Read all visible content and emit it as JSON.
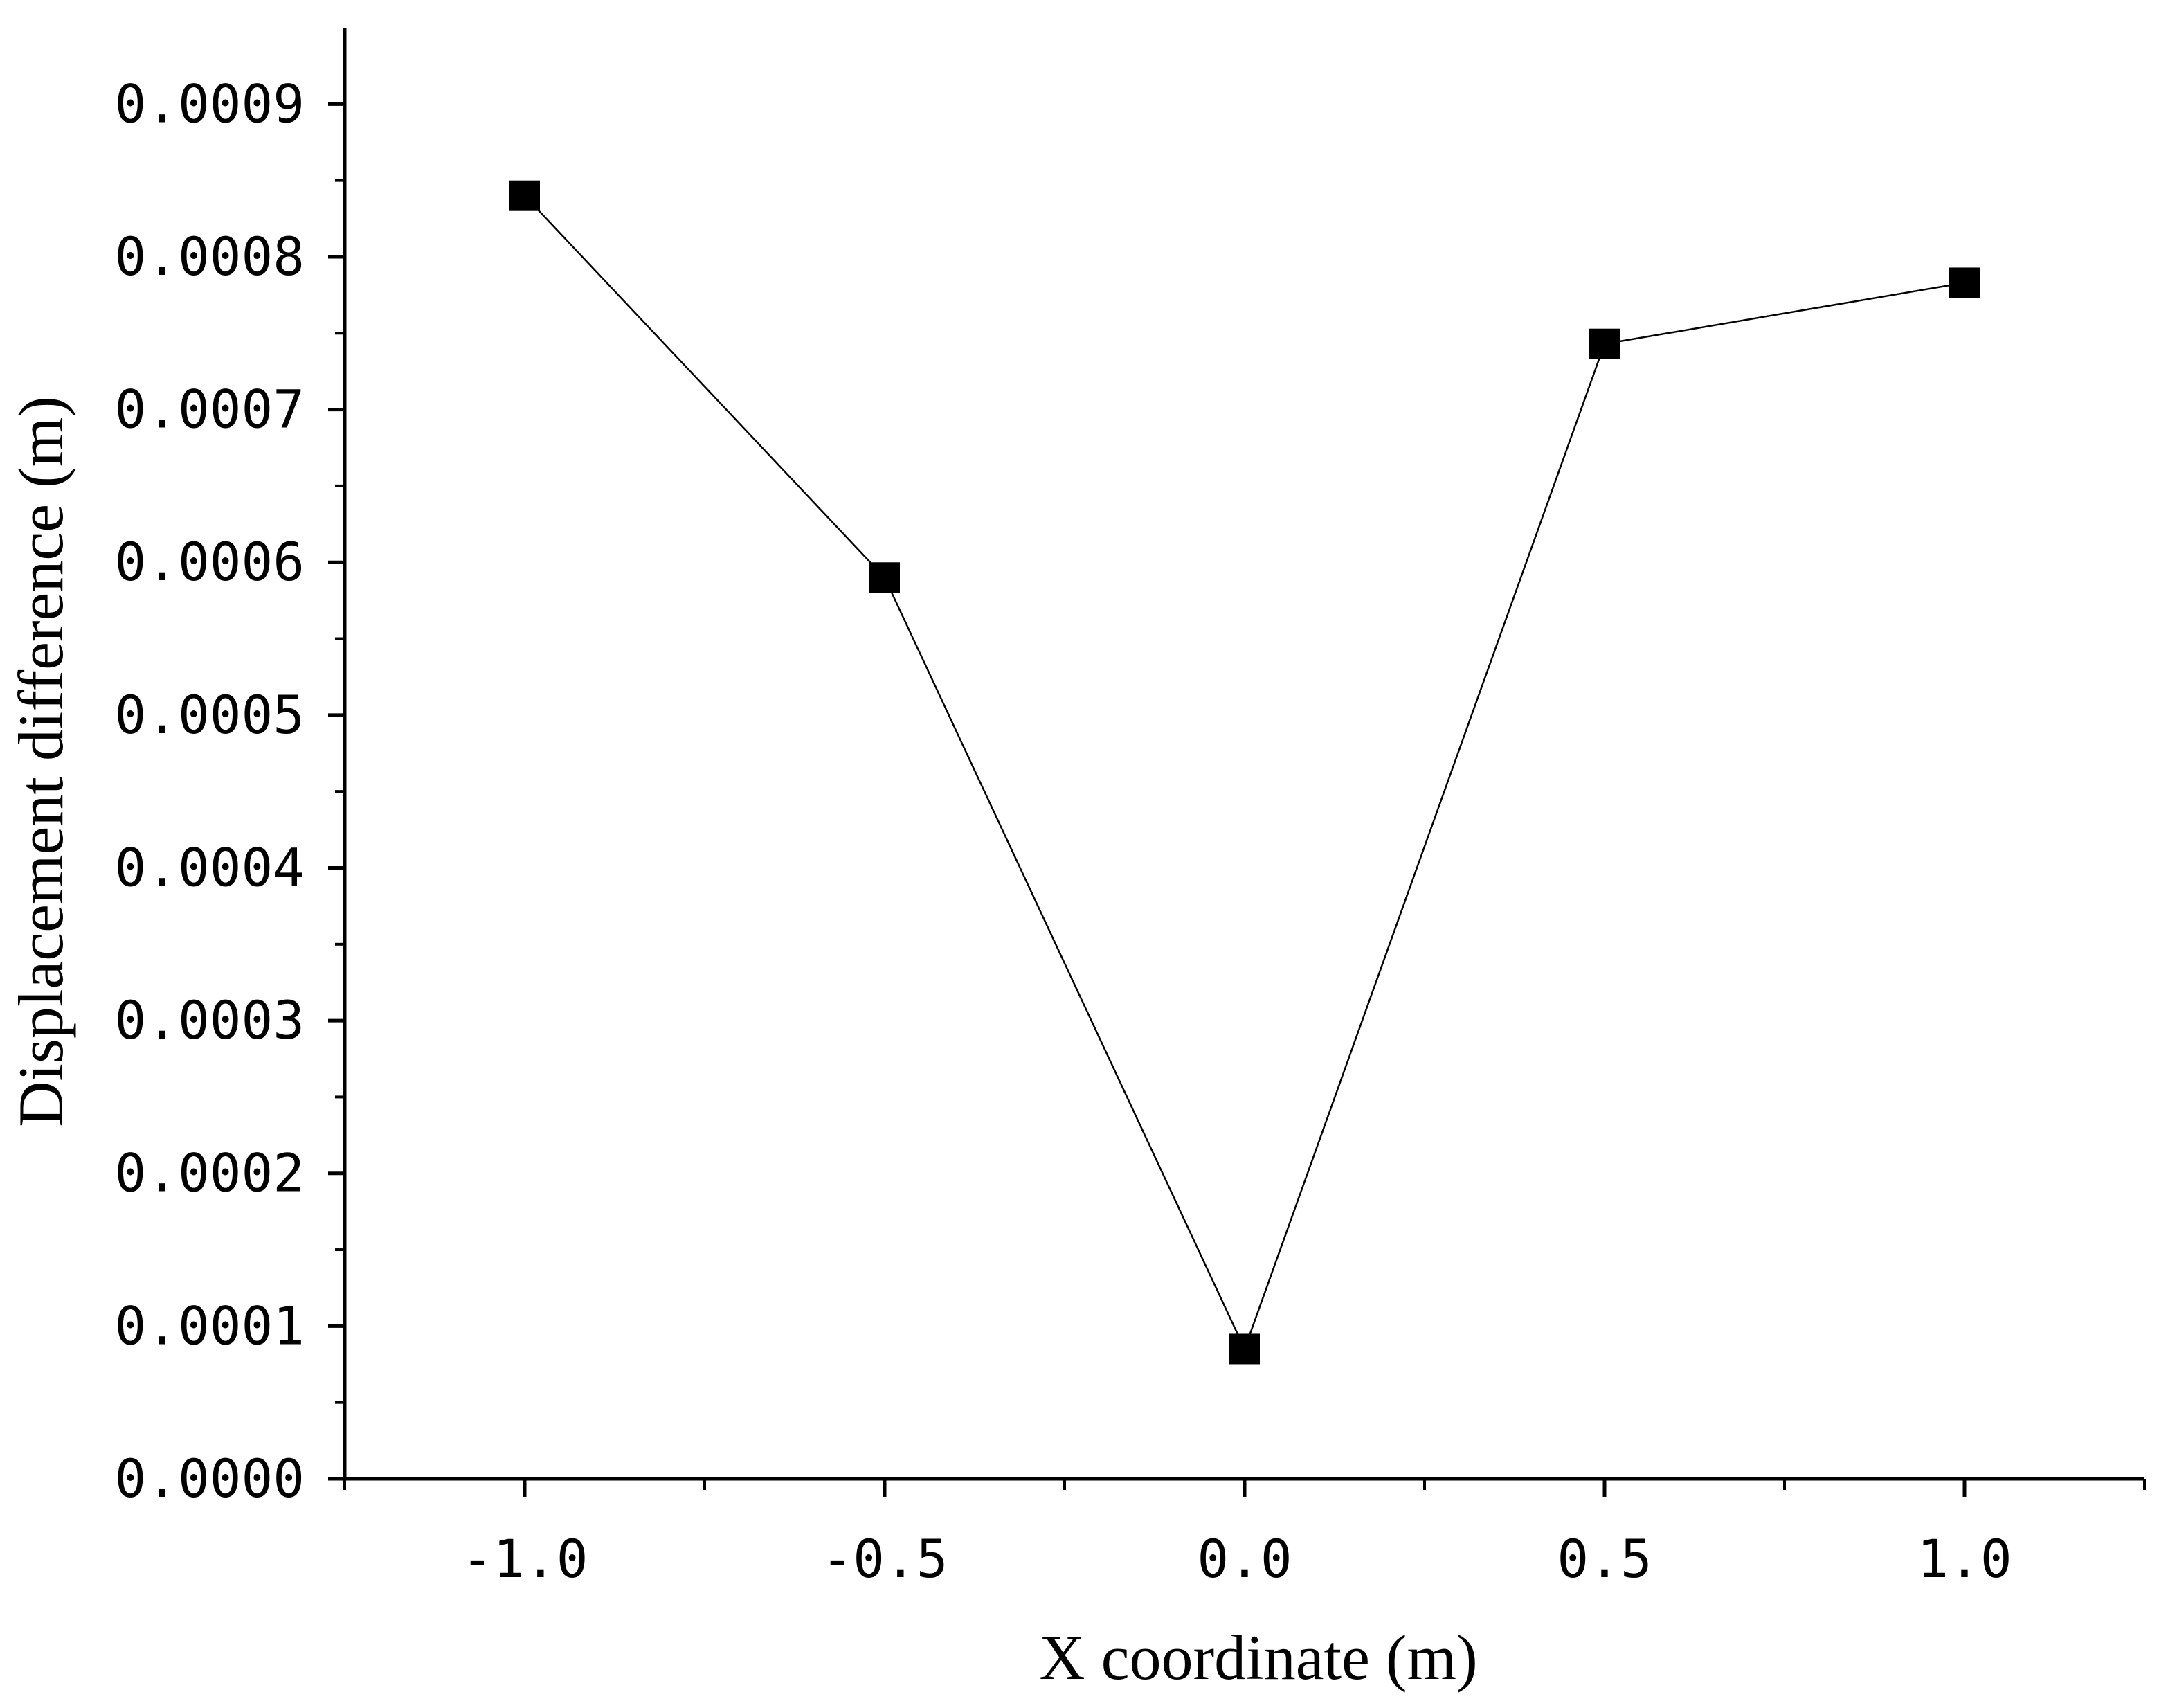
{
  "chart_data": {
    "type": "line",
    "title": "",
    "xlabel": "X coordinate (m)",
    "ylabel": "Displacement difference (m)",
    "x": [
      -1.0,
      -0.5,
      0.0,
      0.5,
      1.0
    ],
    "series": [
      {
        "values": [
          0.00084,
          0.00059,
          8.5e-05,
          0.000743,
          0.000783
        ],
        "marker": "square",
        "color": "#000000"
      }
    ],
    "xlim": [
      -1.25,
      1.25
    ],
    "ylim": [
      0,
      0.00095
    ],
    "x_ticks": [
      -1.0,
      -0.5,
      0.0,
      0.5,
      1.0
    ],
    "x_tick_labels": [
      "-1.0",
      "-0.5",
      "0.0",
      "0.5",
      "1.0"
    ],
    "x_minor_ticks": [
      -1.25,
      -0.75,
      -0.25,
      0.25,
      0.75,
      1.25
    ],
    "y_ticks": [
      0,
      0.0001,
      0.0002,
      0.0003,
      0.0004,
      0.0005,
      0.0006,
      0.0007,
      0.0008,
      0.0009
    ],
    "y_tick_labels": [
      "0.0000",
      "0.0001",
      "0.0002",
      "0.0003",
      "0.0004",
      "0.0005",
      "0.0006",
      "0.0007",
      "0.0008",
      "0.0009"
    ],
    "y_minor_ticks": [
      5e-05,
      0.00015,
      0.00025,
      0.00035,
      0.00045,
      0.00055,
      0.00065,
      0.00075,
      0.00085
    ],
    "grid": false,
    "legend": "none"
  }
}
